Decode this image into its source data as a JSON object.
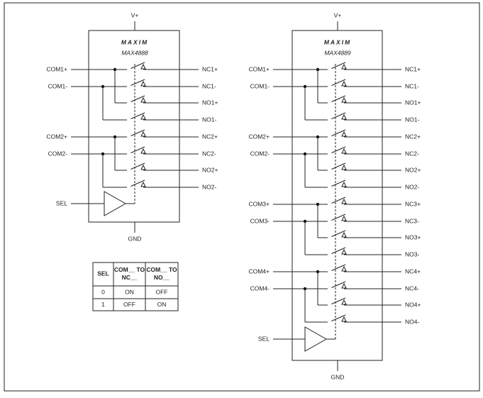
{
  "chips": [
    {
      "logo": "MAXIM",
      "part": "MAX4888",
      "supply": "V+",
      "ground": "GND",
      "sel": "SEL",
      "com_pins": [
        "COM1+",
        "COM1-",
        "COM2+",
        "COM2-"
      ],
      "out_pins": [
        "NC1+",
        "NC1-",
        "NO1+",
        "NO1-",
        "NC2+",
        "NC2-",
        "NO2+",
        "NO2-"
      ]
    },
    {
      "logo": "MAXIM",
      "part": "MAX4889",
      "supply": "V+",
      "ground": "GND",
      "sel": "SEL",
      "com_pins": [
        "COM1+",
        "COM1-",
        "COM2+",
        "COM2-",
        "COM3+",
        "COM3-",
        "COM4+",
        "COM4-"
      ],
      "out_pins": [
        "NC1+",
        "NC1-",
        "NO1+",
        "NO1-",
        "NC2+",
        "NC2-",
        "NO2+",
        "NO2-",
        "NC3+",
        "NC3-",
        "NO3+",
        "NO3-",
        "NC4+",
        "NC4-",
        "NO4+",
        "NO4-"
      ]
    }
  ],
  "table": {
    "header": [
      [
        "SEL"
      ],
      [
        "COM__ TO",
        "NC__"
      ],
      [
        "COM__ TO",
        "NO__"
      ]
    ],
    "rows": [
      [
        "0",
        "ON",
        "OFF"
      ],
      [
        "1",
        "OFF",
        "ON"
      ]
    ]
  }
}
